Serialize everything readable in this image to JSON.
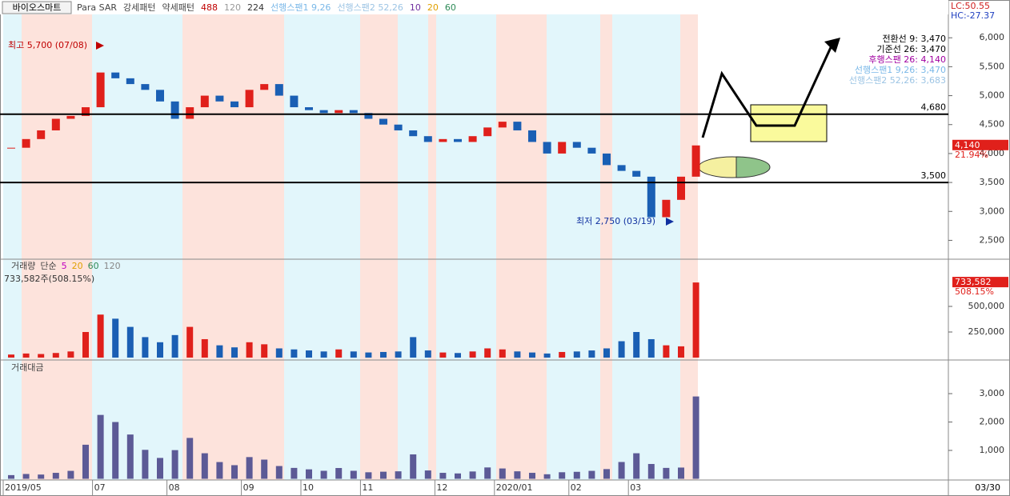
{
  "header": {
    "title": "바이오스마트",
    "indicators": [
      {
        "text": "Para SAR",
        "color": "#444444"
      },
      {
        "text": "강세패턴",
        "color": "#444444"
      },
      {
        "text": "약세패턴",
        "color": "#444444"
      },
      {
        "text": "488",
        "color": "#c00000"
      },
      {
        "text": "120",
        "color": "#999999"
      },
      {
        "text": "224",
        "color": "#333333"
      },
      {
        "text": "선행스팬1 9,26",
        "color": "#7ab8e8"
      },
      {
        "text": "선행스팬2 52,26",
        "color": "#9cc4e4"
      },
      {
        "text": "10",
        "color": "#7030a0"
      },
      {
        "text": "20",
        "color": "#e0a000"
      },
      {
        "text": "60",
        "color": "#2e8b57"
      }
    ],
    "corner_labels": [
      {
        "text": "LC:50.55",
        "color": "#d02020"
      },
      {
        "text": "HC:-27.37",
        "color": "#2040c0"
      }
    ]
  },
  "chart_data": [
    {
      "type": "candle",
      "ylim": [
        2188,
        6404
      ],
      "yticks": [
        {
          "value": 2500,
          "label": "2,500"
        },
        {
          "value": 3000,
          "label": "3,000"
        },
        {
          "value": 3500,
          "label": "3,500"
        },
        {
          "value": 4000,
          "label": "4,000"
        },
        {
          "value": 4500,
          "label": "4,500"
        },
        {
          "value": 5000,
          "label": "5,000"
        },
        {
          "value": 5500,
          "label": "5,500"
        },
        {
          "value": 6000,
          "label": "6,000"
        }
      ],
      "categories": [
        "2019/05",
        null,
        null,
        null,
        null,
        null,
        "07",
        null,
        null,
        null,
        null,
        "08",
        null,
        null,
        null,
        null,
        "09",
        null,
        null,
        null,
        "10",
        null,
        null,
        null,
        "11",
        null,
        null,
        null,
        null,
        "12",
        null,
        null,
        null,
        "2020/01",
        null,
        null,
        null,
        null,
        "02",
        null,
        null,
        null,
        "03",
        null,
        null,
        null,
        null
      ],
      "series": [
        {
          "name": "가격",
          "up_color": "#e0201b",
          "down_color": "#1a5fb4",
          "values": [
            4100,
            4250,
            4400,
            4600,
            4650,
            4800,
            5400,
            5300,
            5200,
            5100,
            4900,
            4600,
            4800,
            5000,
            4900,
            4800,
            5100,
            5200,
            5000,
            4800,
            4750,
            4700,
            4750,
            4700,
            4600,
            4500,
            4400,
            4300,
            4200,
            4250,
            4200,
            4300,
            4450,
            4550,
            4400,
            4200,
            4000,
            4200,
            4100,
            4000,
            3800,
            3700,
            3600,
            2900,
            3200,
            3600,
            4140
          ]
        }
      ],
      "reference_lines": [
        {
          "value": 4680,
          "label": "4,680"
        },
        {
          "value": 3500,
          "label": "3,500"
        }
      ],
      "annotations": [
        {
          "text": "최고 5,700 (07/08)",
          "color": "#c00000"
        },
        {
          "text": "최저 2,750 (03/19)",
          "color": "#1030a0"
        }
      ],
      "indicator_legend": [
        {
          "text": "전환선 9: 3,470",
          "color": "#000000"
        },
        {
          "text": "기준선 26: 3,470",
          "color": "#000000"
        },
        {
          "text": "후행스팬 26: 4,140",
          "color": "#a000a0"
        },
        {
          "text": "선행스팬1 9,26: 3,470",
          "color": "#7ab8e8"
        },
        {
          "text": "선행스팬2 52,26: 3,683",
          "color": "#9cc4e4"
        }
      ],
      "last_label": {
        "value": 4140,
        "label": "4,140"
      },
      "change_label": "21.94%"
    },
    {
      "type": "bar",
      "ylim": [
        0,
        937500
      ],
      "yticks": [
        {
          "value": 250000,
          "label": "250,000"
        },
        {
          "value": 500000,
          "label": "500,000"
        }
      ],
      "legend": [
        {
          "text": "거래량",
          "color": "#444444"
        },
        {
          "text": "단순",
          "color": "#444444"
        },
        {
          "text": "5",
          "color": "#c000c0"
        },
        {
          "text": "20",
          "color": "#e0a000"
        },
        {
          "text": "60",
          "color": "#2e8b57"
        },
        {
          "text": "120",
          "color": "#888888"
        }
      ],
      "summary": "733,582주(508.15%)",
      "series": [
        {
          "name": "거래량",
          "up_color": "#e0201b",
          "down_color": "#1a5fb4",
          "values": [
            30000,
            40000,
            35000,
            45000,
            60000,
            250000,
            420000,
            380000,
            300000,
            200000,
            150000,
            220000,
            300000,
            180000,
            120000,
            100000,
            150000,
            130000,
            90000,
            80000,
            70000,
            60000,
            80000,
            60000,
            50000,
            55000,
            60000,
            200000,
            70000,
            50000,
            45000,
            60000,
            90000,
            80000,
            60000,
            50000,
            40000,
            55000,
            60000,
            70000,
            90000,
            160000,
            250000,
            180000,
            120000,
            110000,
            733582
          ]
        }
      ],
      "last_label": {
        "value": 733582,
        "label": "733,582"
      },
      "change_label": "508.15%"
    },
    {
      "type": "bar",
      "title": "거래대금",
      "ylim": [
        0,
        4100
      ],
      "yticks": [
        {
          "value": 1000,
          "label": "1,000"
        },
        {
          "value": 2000,
          "label": "2,000"
        },
        {
          "value": 3000,
          "label": "3,000"
        }
      ],
      "series": [
        {
          "name": "거래대금",
          "color": "#5c5a96",
          "values": [
            130,
            170,
            150,
            210,
            280,
            1200,
            2250,
            2000,
            1560,
            1020,
            735,
            1010,
            1440,
            900,
            590,
            480,
            765,
            676,
            450,
            384,
            333,
            282,
            380,
            282,
            230,
            250,
            264,
            860,
            294,
            210,
            189,
            258,
            400,
            364,
            264,
            210,
            160,
            231,
            246,
            280,
            342,
            592,
            900,
            522,
            384,
            396,
            2900
          ]
        }
      ]
    }
  ],
  "x_axis": {
    "end_label": "03/30"
  }
}
